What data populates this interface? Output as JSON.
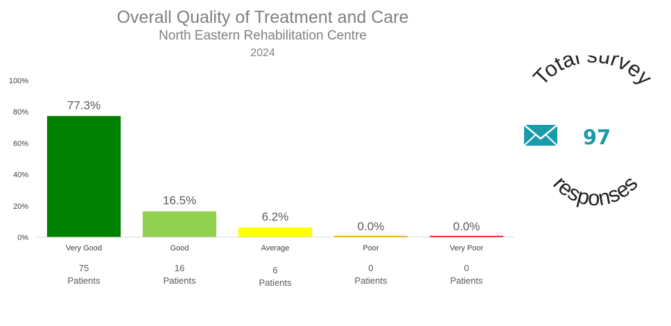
{
  "header": {
    "title": "Overall Quality of Treatment and Care",
    "subtitle": "North Eastern Rehabilitation Centre",
    "year": "2024"
  },
  "chart_data": {
    "type": "bar",
    "categories": [
      "Very Good",
      "Good",
      "Average",
      "Poor",
      "Very Poor"
    ],
    "values": [
      77.3,
      16.5,
      6.2,
      0.0,
      0.0
    ],
    "value_labels": [
      "77.3%",
      "16.5%",
      "6.2%",
      "0.0%",
      "0.0%"
    ],
    "counts": [
      "75",
      "16",
      "6",
      "0",
      "0"
    ],
    "count_unit": "Patients",
    "bar_colors": [
      "#008000",
      "#92d050",
      "#ffff00",
      "#ffa500",
      "#ff0000"
    ],
    "ylim": [
      0,
      100
    ],
    "yticks": [
      0,
      20,
      40,
      60,
      80,
      100
    ],
    "ytick_labels": [
      "0%",
      "20%",
      "40%",
      "60%",
      "80%",
      "100%"
    ],
    "grid": false
  },
  "survey": {
    "top_text": "Total survey",
    "bottom_text": "responses",
    "count": "97",
    "icon": "envelope-icon",
    "accent_color": "#1b9aaa",
    "text_color": "#222222"
  }
}
